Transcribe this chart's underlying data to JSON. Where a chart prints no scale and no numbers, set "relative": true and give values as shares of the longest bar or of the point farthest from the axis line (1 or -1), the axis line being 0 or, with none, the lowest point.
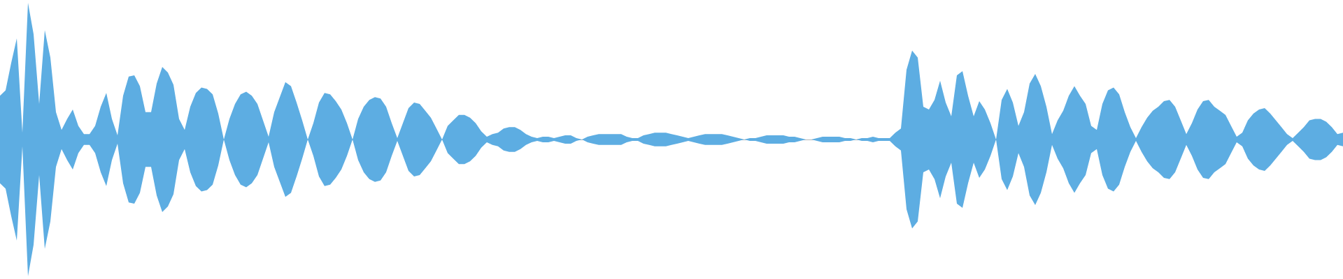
{
  "chart_data": {
    "type": "area",
    "relative": true,
    "tick_labels": false,
    "categories": [
      null,
      null,
      null,
      null,
      null,
      null,
      null,
      null,
      null,
      null,
      null,
      null,
      null,
      null,
      null,
      null,
      null,
      null,
      null,
      null,
      null,
      null,
      null,
      null,
      null,
      null,
      null,
      null,
      null,
      null,
      null,
      null,
      null,
      null,
      null,
      null,
      null,
      null,
      null,
      null,
      null,
      null,
      null,
      null,
      null,
      null,
      null,
      null,
      null,
      null,
      null,
      null,
      null,
      null,
      null,
      null,
      null,
      null,
      null,
      null,
      null,
      null,
      null,
      null,
      null,
      null,
      null,
      null,
      null,
      null,
      null,
      null,
      null,
      null,
      null,
      null,
      null,
      null,
      null,
      null,
      null,
      null,
      null,
      null,
      null,
      null,
      null,
      null,
      null,
      null,
      null,
      null,
      null,
      null,
      null,
      null,
      null,
      null,
      null,
      null,
      null,
      null,
      null,
      null,
      null,
      null,
      null,
      null,
      null,
      null,
      null,
      null,
      null,
      null,
      null,
      null,
      null,
      null,
      null,
      null,
      null,
      null,
      null,
      null,
      null,
      null,
      null,
      null,
      null,
      null,
      null,
      null,
      null,
      null,
      null,
      null,
      null,
      null,
      null,
      null,
      null,
      null,
      null,
      null,
      null,
      null,
      null,
      null,
      null,
      null,
      null,
      null,
      null,
      null,
      null,
      null,
      null,
      null,
      null,
      null,
      null,
      null,
      null,
      null,
      null,
      null,
      null,
      null,
      null,
      null,
      null,
      null,
      null,
      null,
      null,
      null,
      null,
      null,
      null,
      null,
      null,
      null,
      null,
      null,
      null,
      null,
      null,
      null,
      null,
      null,
      null,
      null,
      null,
      null,
      null,
      null,
      null,
      null,
      null,
      null,
      null,
      null,
      null,
      null,
      null,
      null,
      null,
      null,
      null,
      null,
      null,
      null,
      null,
      null,
      null,
      null,
      null,
      null,
      null,
      null,
      null,
      null,
      null,
      null,
      null,
      null,
      null,
      null,
      null,
      null,
      null,
      null,
      null,
      null,
      null,
      null,
      null,
      null,
      null,
      null,
      null
    ],
    "series": [
      {
        "color": "#5dade2",
        "values": [
          0.32,
          0.36,
          0.56,
          0.74,
          0.05,
          1,
          0.77,
          0.26,
          0.8,
          0.6,
          0.2,
          0.07,
          0.15,
          0.22,
          0.1,
          0.04,
          0.04,
          0.1,
          0.24,
          0.34,
          0.15,
          0.03,
          0.32,
          0.46,
          0.47,
          0.39,
          0.2,
          0.2,
          0.41,
          0.53,
          0.49,
          0.4,
          0.15,
          0.07,
          0.24,
          0.34,
          0.38,
          0.37,
          0.33,
          0.19,
          0,
          0.15,
          0.26,
          0.33,
          0.35,
          0.32,
          0.26,
          0.14,
          0.02,
          0.2,
          0.31,
          0.42,
          0.39,
          0.27,
          0.14,
          0,
          0.12,
          0.27,
          0.34,
          0.33,
          0.28,
          0.22,
          0.12,
          0,
          0.15,
          0.24,
          0.29,
          0.31,
          0.3,
          0.24,
          0.12,
          0.01,
          0.12,
          0.23,
          0.27,
          0.26,
          0.21,
          0.16,
          0.08,
          0,
          0.1,
          0.14,
          0.18,
          0.18,
          0.16,
          0.12,
          0.06,
          0.02,
          0.04,
          0.05,
          0.08,
          0.09,
          0.09,
          0.07,
          0.04,
          0.02,
          0.01,
          0.02,
          0.02,
          0.01,
          0.02,
          0.03,
          0.03,
          0.01,
          0,
          0.02,
          0.03,
          0.04,
          0.04,
          0.04,
          0.04,
          0.04,
          0.02,
          0.01,
          0.01,
          0.03,
          0.04,
          0.05,
          0.05,
          0.05,
          0.04,
          0.03,
          0.02,
          0.01,
          0.02,
          0.03,
          0.04,
          0.04,
          0.04,
          0.04,
          0.03,
          0.02,
          0.01,
          0,
          0.01,
          0.01,
          0.02,
          0.03,
          0.03,
          0.03,
          0.03,
          0.02,
          0.02,
          0.01,
          0,
          0,
          0.01,
          0.02,
          0.02,
          0.02,
          0.02,
          0.01,
          0.01,
          0,
          0.01,
          0.01,
          0.02,
          0.01,
          0.01,
          0.01,
          0.05,
          0.08,
          0.51,
          0.65,
          0.6,
          0.24,
          0.22,
          0.29,
          0.43,
          0.27,
          0.17,
          0.47,
          0.5,
          0.32,
          0.17,
          0.28,
          0.22,
          0.12,
          0,
          0.29,
          0.37,
          0.27,
          0.1,
          0.2,
          0.41,
          0.48,
          0.39,
          0.24,
          0.04,
          0.14,
          0.21,
          0.32,
          0.39,
          0.32,
          0.26,
          0.1,
          0.07,
          0.26,
          0.36,
          0.38,
          0.33,
          0.2,
          0.09,
          0.01,
          0.09,
          0.16,
          0.21,
          0.24,
          0.28,
          0.29,
          0.24,
          0.14,
          0.04,
          0.12,
          0.22,
          0.28,
          0.29,
          0.24,
          0.21,
          0.18,
          0.1,
          0.02,
          0.05,
          0.14,
          0.19,
          0.22,
          0.23,
          0.19,
          0.14,
          0.09,
          0.04,
          0.01,
          0.05,
          0.09,
          0.14,
          0.15,
          0.15,
          0.13,
          0.09,
          0.04,
          0.05
        ]
      },
      {
        "color": "#5dade2",
        "values": [
          -0.32,
          -0.36,
          -0.56,
          -0.74,
          -0.05,
          -1,
          -0.77,
          -0.26,
          -0.8,
          -0.6,
          -0.2,
          -0.07,
          -0.15,
          -0.22,
          -0.1,
          -0.04,
          -0.04,
          -0.1,
          -0.24,
          -0.34,
          -0.15,
          -0.03,
          -0.32,
          -0.46,
          -0.47,
          -0.39,
          -0.2,
          -0.2,
          -0.41,
          -0.53,
          -0.49,
          -0.4,
          -0.15,
          -0.07,
          -0.24,
          -0.34,
          -0.38,
          -0.37,
          -0.33,
          -0.19,
          0,
          -0.15,
          -0.26,
          -0.33,
          -0.35,
          -0.32,
          -0.26,
          -0.14,
          -0.02,
          -0.2,
          -0.31,
          -0.42,
          -0.39,
          -0.27,
          -0.14,
          0,
          -0.12,
          -0.27,
          -0.34,
          -0.33,
          -0.28,
          -0.22,
          -0.12,
          0,
          -0.15,
          -0.24,
          -0.29,
          -0.31,
          -0.3,
          -0.24,
          -0.12,
          -0.01,
          -0.12,
          -0.23,
          -0.27,
          -0.26,
          -0.21,
          -0.16,
          -0.08,
          0,
          -0.1,
          -0.14,
          -0.18,
          -0.18,
          -0.16,
          -0.12,
          -0.06,
          -0.02,
          -0.04,
          -0.05,
          -0.08,
          -0.09,
          -0.09,
          -0.07,
          -0.04,
          -0.02,
          -0.01,
          -0.02,
          -0.02,
          -0.01,
          -0.02,
          -0.03,
          -0.03,
          -0.01,
          0,
          -0.02,
          -0.03,
          -0.04,
          -0.04,
          -0.04,
          -0.04,
          -0.04,
          -0.02,
          -0.01,
          -0.01,
          -0.03,
          -0.04,
          -0.05,
          -0.05,
          -0.05,
          -0.04,
          -0.03,
          -0.02,
          -0.01,
          -0.02,
          -0.03,
          -0.04,
          -0.04,
          -0.04,
          -0.04,
          -0.03,
          -0.02,
          -0.01,
          0,
          -0.01,
          -0.01,
          -0.02,
          -0.03,
          -0.03,
          -0.03,
          -0.03,
          -0.02,
          -0.02,
          -0.01,
          0,
          0,
          -0.01,
          -0.02,
          -0.02,
          -0.02,
          -0.02,
          -0.01,
          -0.01,
          0,
          -0.01,
          -0.01,
          -0.02,
          -0.01,
          -0.01,
          -0.01,
          -0.05,
          -0.08,
          -0.51,
          -0.65,
          -0.6,
          -0.24,
          -0.22,
          -0.29,
          -0.43,
          -0.27,
          -0.17,
          -0.47,
          -0.5,
          -0.32,
          -0.17,
          -0.28,
          -0.22,
          -0.12,
          0,
          -0.29,
          -0.37,
          -0.27,
          -0.1,
          -0.2,
          -0.41,
          -0.48,
          -0.39,
          -0.24,
          -0.04,
          -0.14,
          -0.21,
          -0.32,
          -0.39,
          -0.32,
          -0.26,
          -0.1,
          -0.07,
          -0.26,
          -0.36,
          -0.38,
          -0.33,
          -0.2,
          -0.09,
          -0.01,
          -0.09,
          -0.16,
          -0.21,
          -0.24,
          -0.28,
          -0.29,
          -0.24,
          -0.14,
          -0.04,
          -0.12,
          -0.22,
          -0.28,
          -0.29,
          -0.24,
          -0.21,
          -0.18,
          -0.1,
          -0.02,
          -0.05,
          -0.14,
          -0.19,
          -0.22,
          -0.23,
          -0.19,
          -0.14,
          -0.09,
          -0.04,
          -0.01,
          -0.05,
          -0.09,
          -0.14,
          -0.15,
          -0.15,
          -0.13,
          -0.09,
          -0.04,
          -0.05
        ]
      }
    ]
  }
}
